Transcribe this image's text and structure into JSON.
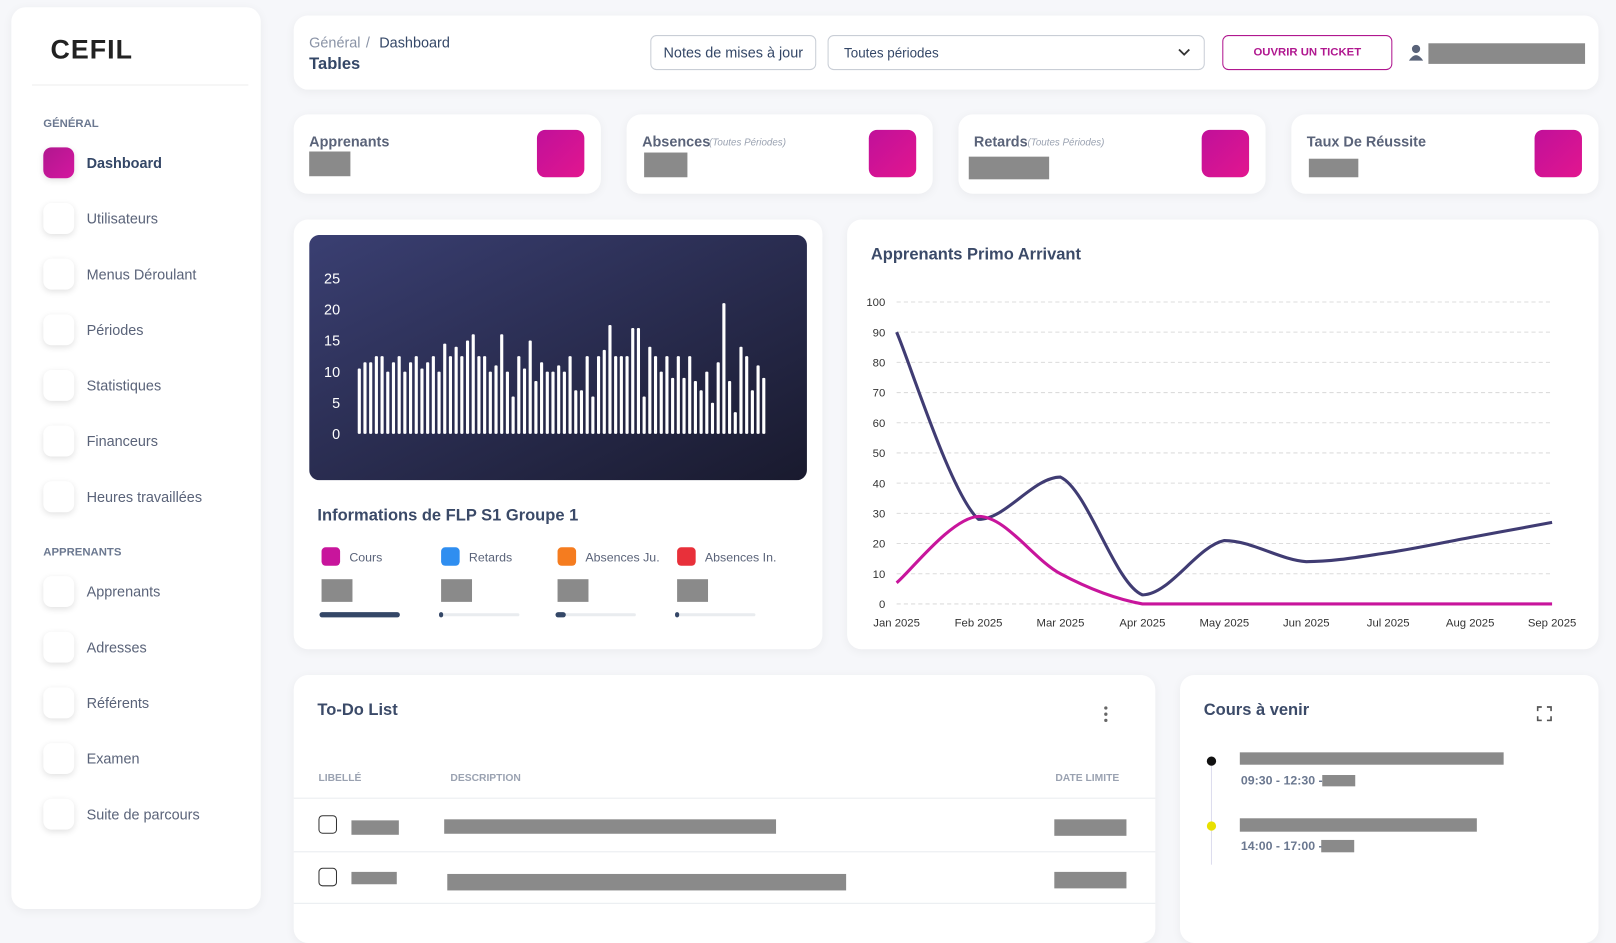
{
  "logo": "CEFIL",
  "sidebar": {
    "sections": [
      {
        "title": "GÉNÉRAL",
        "items": [
          "Dashboard",
          "Utilisateurs",
          "Menus Déroulant",
          "Périodes",
          "Statistiques",
          "Financeurs",
          "Heures travaillées"
        ]
      },
      {
        "title": "APPRENANTS",
        "items": [
          "Apprenants",
          "Adresses",
          "Référents",
          "Examen",
          "Suite de parcours"
        ]
      }
    ]
  },
  "header": {
    "breadcrumb": [
      "Général",
      "Dashboard"
    ],
    "separator": "/",
    "title": "Tables",
    "notes_button": "Notes de mises à jour",
    "period_select": "Toutes périodes",
    "ticket_button": "OUVRIR UN TICKET"
  },
  "stats": [
    {
      "label": "Apprenants"
    },
    {
      "label": "Absences",
      "note": "(Toutes Périodes)"
    },
    {
      "label": "Retards",
      "note": "(Toutes Périodes)"
    },
    {
      "label": "Taux De Réussite"
    }
  ],
  "bar_chart": {
    "type": "bar",
    "color": "#ffffff",
    "ylim": [
      0,
      25
    ],
    "yticks": [
      0,
      5,
      10,
      15,
      20,
      25
    ],
    "values": [
      10.5,
      11.5,
      11.5,
      12.5,
      12.5,
      10,
      11.5,
      12.5,
      10,
      11.5,
      12.5,
      10.5,
      11.5,
      12.5,
      10,
      14.5,
      12.5,
      14,
      12.5,
      15,
      16,
      12.5,
      12.5,
      10,
      11,
      16,
      10,
      6,
      12.5,
      10.5,
      15,
      8.5,
      11.5,
      10,
      10,
      11,
      10,
      12.5,
      7,
      7,
      12.5,
      6,
      12.5,
      13.5,
      17.5,
      12.5,
      12.5,
      12.5,
      17,
      17,
      6,
      14,
      12.5,
      10,
      12.5,
      9,
      12.5,
      9,
      12.5,
      8.5,
      7,
      10,
      5,
      11.5,
      21,
      8.5,
      3.5,
      14,
      12.5,
      7,
      11,
      9
    ]
  },
  "informations": {
    "title": "Informations de FLP S1 Groupe 1",
    "items": [
      "Cours",
      "Retards",
      "Absences Ju.",
      "Absences In."
    ]
  },
  "line_chart": {
    "type": "line",
    "title": "Apprenants Primo Arrivant",
    "x": [
      "Jan 2025",
      "Feb 2025",
      "Mar 2025",
      "Apr 2025",
      "May 2025",
      "Jun 2025",
      "Jul 2025",
      "Aug 2025",
      "Sep 2025"
    ],
    "ylim": [
      0,
      100
    ],
    "yticks": [
      0,
      10,
      20,
      30,
      40,
      50,
      60,
      70,
      80,
      90,
      100
    ],
    "grid": true,
    "series": [
      {
        "color": "#403c73",
        "values": [
          90,
          28,
          42,
          3,
          21,
          14,
          17,
          22,
          27
        ]
      },
      {
        "color": "#c8159c",
        "values": [
          7,
          29,
          10,
          0,
          0,
          0,
          0,
          0,
          0
        ]
      }
    ]
  },
  "todo": {
    "title": "To-Do List",
    "columns": [
      "LIBELLÉ",
      "DESCRIPTION",
      "DATE LIMITE"
    ]
  },
  "upcoming": {
    "title": "Cours à venir",
    "events": [
      {
        "time": "09:30 - 12:30 -"
      },
      {
        "time": "14:00 - 17:00 -"
      }
    ]
  }
}
